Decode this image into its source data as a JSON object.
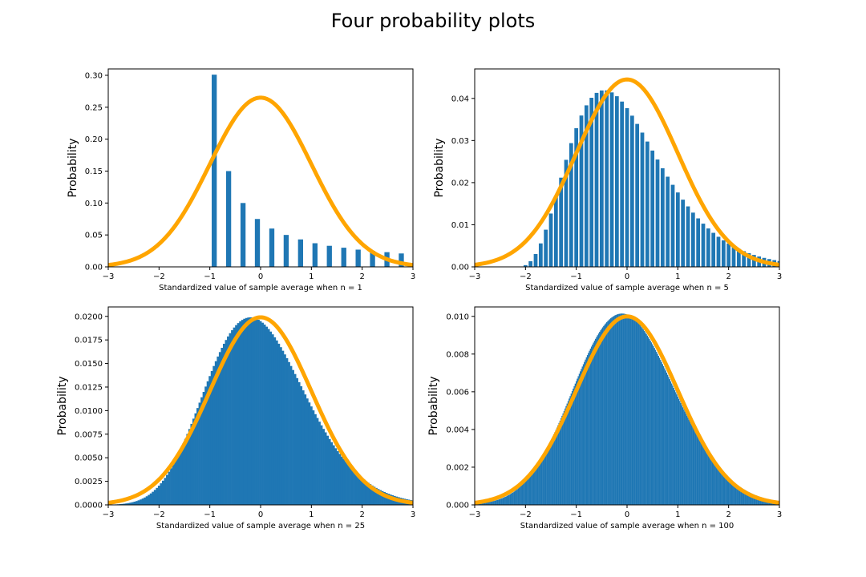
{
  "figure": {
    "title": "Four probability plots"
  },
  "colors": {
    "bars": "#1f77b4",
    "curve": "#ffa500"
  },
  "chart_data": [
    {
      "type": "bar",
      "panel": "top-left",
      "xlabel": "Standardized value of sample average when n = 1",
      "ylabel": "Probability",
      "xlim": [
        -3,
        3
      ],
      "ylim": [
        0,
        0.31
      ],
      "xticks": [
        -3,
        -2,
        -1,
        0,
        1,
        2,
        3
      ],
      "yticks": [
        0,
        0.05,
        0.1,
        0.15,
        0.2,
        0.25,
        0.3
      ],
      "ytick_labels": [
        "0.00",
        "0.05",
        "0.10",
        "0.15",
        "0.20",
        "0.25",
        "0.30"
      ],
      "bar_width": 0.1,
      "x": [
        -0.913,
        -0.63,
        -0.346,
        -0.063,
        0.221,
        0.504,
        0.787,
        1.071,
        1.354,
        1.638,
        1.921,
        2.204,
        2.488,
        2.771
      ],
      "values": [
        0.301,
        0.15,
        0.1,
        0.075,
        0.06,
        0.05,
        0.043,
        0.037,
        0.033,
        0.03,
        0.027,
        0.025,
        0.023,
        0.021
      ],
      "curve": {
        "mean": 0,
        "sd": 1,
        "peak": 0.265
      },
      "grid": false
    },
    {
      "type": "bar",
      "panel": "top-right",
      "xlabel": "Standardized value of sample average when n = 5",
      "ylabel": "Probability",
      "xlim": [
        -3,
        3
      ],
      "ylim": [
        0,
        0.047
      ],
      "xticks": [
        -3,
        -2,
        -1,
        0,
        1,
        2,
        3
      ],
      "yticks": [
        0,
        0.01,
        0.02,
        0.03,
        0.04
      ],
      "ytick_labels": [
        "0.00",
        "0.01",
        "0.02",
        "0.03",
        "0.04"
      ],
      "bar_width": 0.075,
      "gamma_shape": 5,
      "x_start": -2.0,
      "x_step": 0.1,
      "x_end": 3.0,
      "curve": {
        "mean": 0,
        "sd": 1,
        "peak": 0.0445
      },
      "grid": false
    },
    {
      "type": "bar",
      "panel": "bottom-left",
      "xlabel": "Standardized value of sample average when n = 25",
      "ylabel": "Probability",
      "xlim": [
        -3,
        3
      ],
      "ylim": [
        0,
        0.021
      ],
      "xticks": [
        -3,
        -2,
        -1,
        0,
        1,
        2,
        3
      ],
      "yticks": [
        0,
        0.0025,
        0.005,
        0.0075,
        0.01,
        0.0125,
        0.015,
        0.0175,
        0.02
      ],
      "ytick_labels": [
        "0.0000",
        "0.0025",
        "0.0050",
        "0.0075",
        "0.0100",
        "0.0125",
        "0.0150",
        "0.0175",
        "0.0200"
      ],
      "bar_width": 0.045,
      "gamma_shape": 25,
      "x_start": -3.0,
      "x_step": 0.04,
      "x_end": 3.0,
      "curve": {
        "mean": 0,
        "sd": 1,
        "peak": 0.0199
      },
      "grid": false
    },
    {
      "type": "bar",
      "panel": "bottom-right",
      "xlabel": "Standardized value of sample average when n = 100",
      "ylabel": "Probability",
      "xlim": [
        -3,
        3
      ],
      "ylim": [
        0,
        0.0105
      ],
      "xticks": [
        -3,
        -2,
        -1,
        0,
        1,
        2,
        3
      ],
      "yticks": [
        0,
        0.002,
        0.004,
        0.006,
        0.008,
        0.01
      ],
      "ytick_labels": [
        "0.000",
        "0.002",
        "0.004",
        "0.006",
        "0.008",
        "0.010"
      ],
      "bar_width": 0.022,
      "gamma_shape": 100,
      "x_start": -3.0,
      "x_step": 0.02,
      "x_end": 3.0,
      "curve": {
        "mean": 0,
        "sd": 1,
        "peak": 0.01
      },
      "grid": false
    }
  ]
}
